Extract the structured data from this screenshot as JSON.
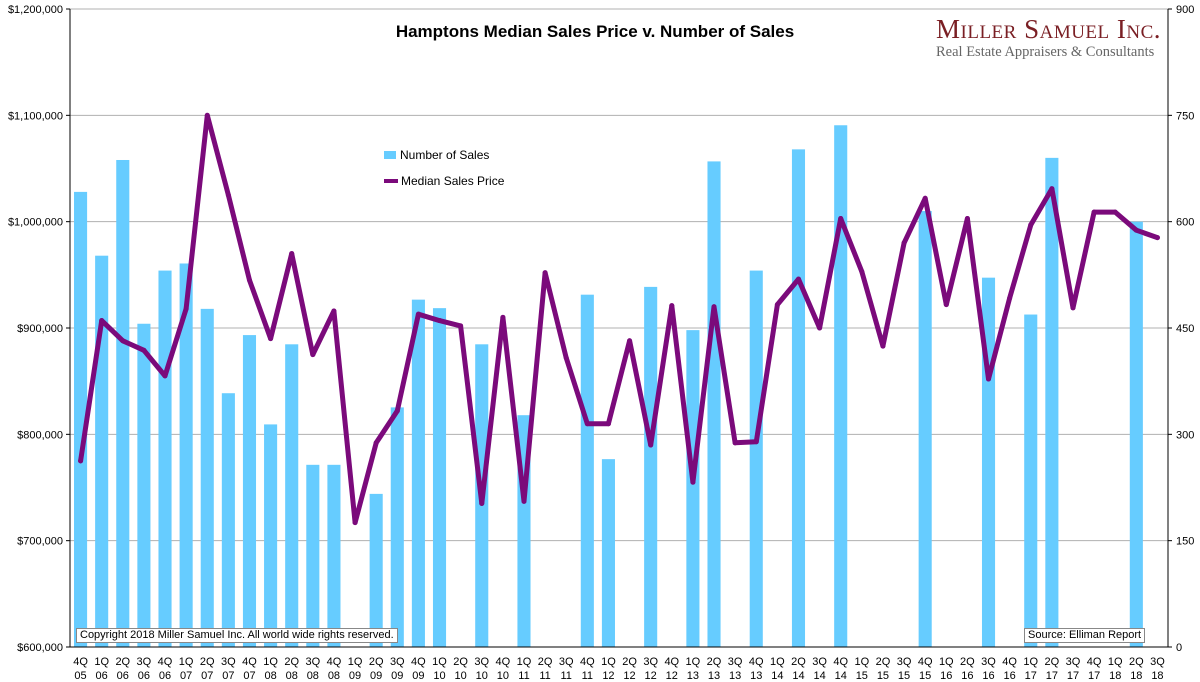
{
  "chart_data": {
    "type": "bar+line",
    "title": "Hamptons Median Sales Price v. Number of Sales",
    "categories": [
      [
        "4Q",
        "05"
      ],
      [
        "1Q",
        "06"
      ],
      [
        "2Q",
        "06"
      ],
      [
        "3Q",
        "06"
      ],
      [
        "4Q",
        "06"
      ],
      [
        "1Q",
        "07"
      ],
      [
        "2Q",
        "07"
      ],
      [
        "3Q",
        "07"
      ],
      [
        "4Q",
        "07"
      ],
      [
        "1Q",
        "08"
      ],
      [
        "2Q",
        "08"
      ],
      [
        "3Q",
        "08"
      ],
      [
        "4Q",
        "08"
      ],
      [
        "1Q",
        "09"
      ],
      [
        "2Q",
        "09"
      ],
      [
        "3Q",
        "09"
      ],
      [
        "4Q",
        "09"
      ],
      [
        "1Q",
        "10"
      ],
      [
        "2Q",
        "10"
      ],
      [
        "3Q",
        "10"
      ],
      [
        "4Q",
        "10"
      ],
      [
        "1Q",
        "11"
      ],
      [
        "2Q",
        "11"
      ],
      [
        "3Q",
        "11"
      ],
      [
        "4Q",
        "11"
      ],
      [
        "1Q",
        "12"
      ],
      [
        "2Q",
        "12"
      ],
      [
        "3Q",
        "12"
      ],
      [
        "4Q",
        "12"
      ],
      [
        "1Q",
        "13"
      ],
      [
        "2Q",
        "13"
      ],
      [
        "3Q",
        "13"
      ],
      [
        "4Q",
        "13"
      ],
      [
        "1Q",
        "14"
      ],
      [
        "2Q",
        "14"
      ],
      [
        "3Q",
        "14"
      ],
      [
        "4Q",
        "14"
      ],
      [
        "1Q",
        "15"
      ],
      [
        "2Q",
        "15"
      ],
      [
        "3Q",
        "15"
      ],
      [
        "4Q",
        "15"
      ],
      [
        "1Q",
        "16"
      ],
      [
        "2Q",
        "16"
      ],
      [
        "3Q",
        "16"
      ],
      [
        "4Q",
        "16"
      ],
      [
        "1Q",
        "17"
      ],
      [
        "2Q",
        "17"
      ],
      [
        "3Q",
        "17"
      ],
      [
        "4Q",
        "17"
      ],
      [
        "1Q",
        "18"
      ],
      [
        "2Q",
        "18"
      ],
      [
        "3Q",
        "18"
      ]
    ],
    "series": [
      {
        "name": "Number of Sales",
        "type": "bar",
        "axis": "right",
        "color": "#66ccff",
        "values": [
          642,
          552,
          687,
          456,
          531,
          541,
          477,
          358,
          440,
          314,
          427,
          257,
          257,
          0,
          216,
          338,
          490,
          478,
          0,
          427,
          0,
          327,
          0,
          0,
          497,
          265,
          0,
          508,
          0,
          447,
          685,
          0,
          531,
          0,
          702,
          0,
          736,
          0,
          0,
          0,
          615,
          0,
          0,
          521,
          0,
          469,
          690,
          0,
          0,
          0,
          600,
          0
        ]
      },
      {
        "name": "Median Sales Price",
        "type": "line",
        "axis": "left",
        "color": "#7b0a7b",
        "values": [
          775000,
          907000,
          888000,
          879000,
          855000,
          918000,
          1100000,
          1025000,
          945000,
          890000,
          970000,
          875000,
          916000,
          717000,
          792000,
          822000,
          913000,
          907000,
          902000,
          735000,
          910000,
          737000,
          952000,
          872000,
          810000,
          810000,
          888000,
          790000,
          921000,
          755000,
          920000,
          792000,
          793000,
          922000,
          946000,
          900000,
          1003000,
          953000,
          883000,
          980000,
          1022000,
          922000,
          1003000,
          852000,
          928000,
          997000,
          1031000,
          919000,
          1009000,
          1009000,
          992000,
          985000
        ]
      }
    ],
    "left_axis": {
      "min": 600000,
      "max": 1200000,
      "step": 100000,
      "tick_labels": [
        "$600,000",
        "$700,000",
        "$800,000",
        "$900,000",
        "$1,000,000",
        "$1,100,000",
        "$1,200,000"
      ]
    },
    "right_axis": {
      "min": 0,
      "max": 900,
      "step": 150,
      "tick_labels": [
        "0",
        "150",
        "300",
        "450",
        "600",
        "750",
        "900"
      ]
    },
    "legend_position": "upper-center"
  },
  "brand": {
    "name": "Miller Samuel Inc.",
    "tagline": "Real Estate Appraisers & Consultants"
  },
  "legend": {
    "bar_label": "Number of Sales",
    "line_label": "Median Sales Price"
  },
  "notes": {
    "copyright": "Copyright 2018 Miller Samuel Inc.  All world wide rights reserved.",
    "source": "Source:  Elliman Report"
  }
}
